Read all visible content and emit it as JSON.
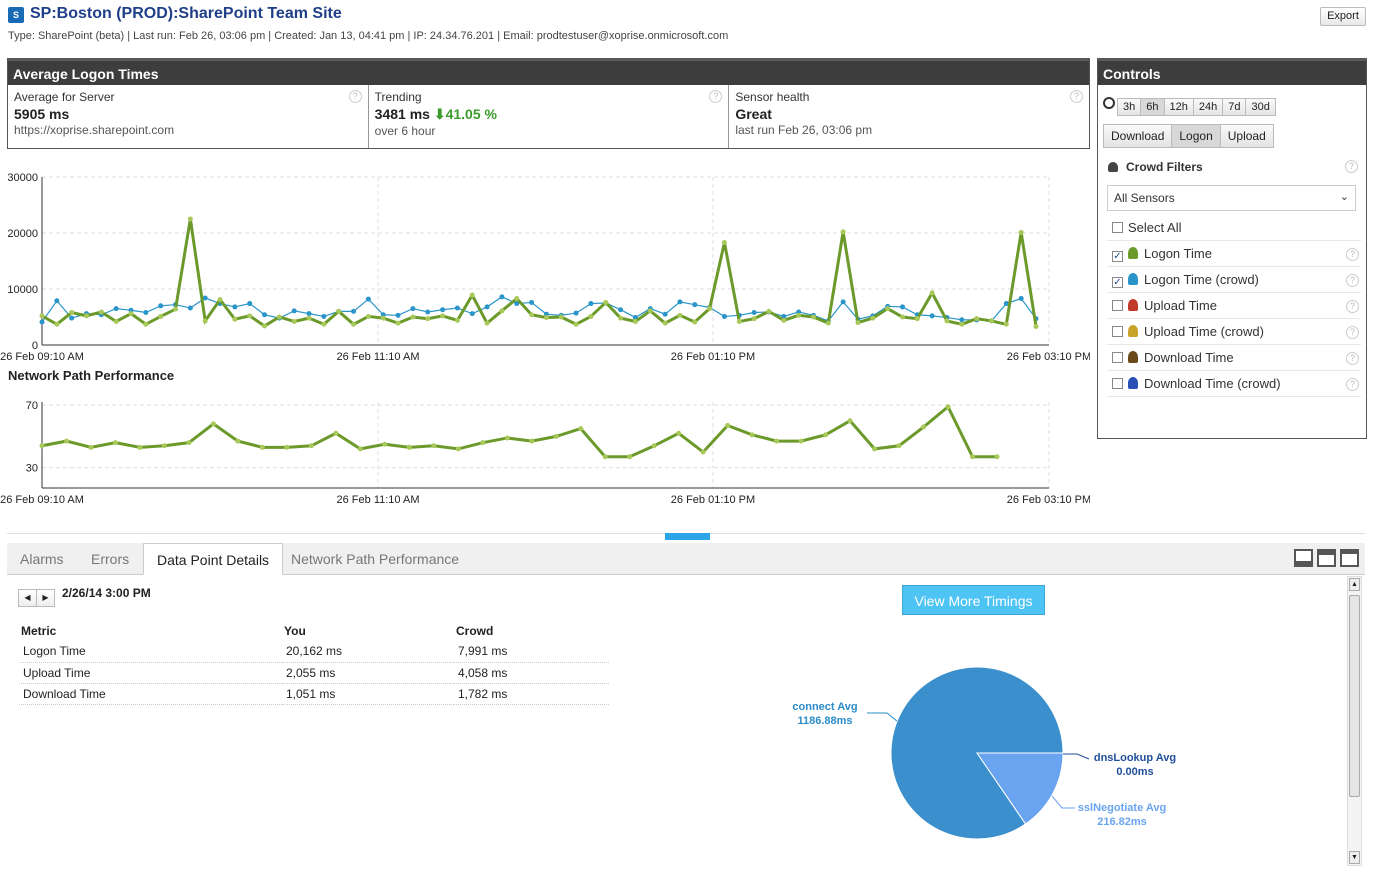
{
  "header": {
    "title": "SP:Boston (PROD):SharePoint Team Site",
    "meta": "Type: SharePoint (beta) | Last run: Feb 26, 03:06 pm | Created: Jan 13, 04:41 pm | IP: 24.34.76.201 | Email: prodtestuser@xoprise.onmicrosoft.com",
    "export_label": "Export",
    "logo_text": "S"
  },
  "avg_panel": {
    "title": "Average Logon Times",
    "stats": [
      {
        "label": "Average for Server",
        "value": "5905 ms",
        "sub": "https://xoprise.sharepoint.com"
      },
      {
        "label": "Trending",
        "value": "3481 ms",
        "trend": "41.05 %",
        "sub": "over 6 hour"
      },
      {
        "label": "Sensor health",
        "value": "Great",
        "sub": "last run Feb 26, 03:06 pm"
      }
    ]
  },
  "chart_data": [
    {
      "type": "line",
      "title": "",
      "x_tick_labels": [
        "26 Feb 09:10 AM",
        "26 Feb 11:10 AM",
        "26 Feb 01:10 PM",
        "26 Feb 03:10 PM"
      ],
      "y_tick_labels": [
        "0",
        "10000",
        "20000",
        "30000"
      ],
      "ylim": [
        0,
        30000
      ],
      "grid": true,
      "series": [
        {
          "color": "#6b9a2a",
          "values": [
            5200,
            3700,
            5800,
            5200,
            5900,
            4200,
            5600,
            3700,
            5100,
            6400,
            22500,
            4300,
            8100,
            4600,
            5200,
            3400,
            5000,
            4200,
            4800,
            3700,
            6000,
            3700,
            5100,
            4800,
            3900,
            5000,
            4700,
            5200,
            4400,
            8900,
            3900,
            6100,
            8300,
            5400,
            4900,
            5000,
            3700,
            5100,
            7600,
            4800,
            4200,
            6100,
            3900,
            5300,
            4100,
            6500,
            18300,
            4200,
            4700,
            6000,
            4400,
            5300,
            5000,
            3900,
            20200,
            4000,
            4800,
            6500,
            5000,
            4700,
            9300,
            4300,
            3700,
            4700,
            4300,
            3700,
            20100,
            3300
          ]
        },
        {
          "color": "#2a95c9",
          "values": [
            4100,
            7900,
            4800,
            5600,
            5400,
            6500,
            6200,
            5800,
            7000,
            7200,
            6600,
            8400,
            7400,
            6800,
            7400,
            5400,
            4800,
            6100,
            5600,
            5100,
            6000,
            6000,
            8200,
            5400,
            5300,
            6500,
            5900,
            6300,
            6600,
            5600,
            6800,
            8600,
            7400,
            7600,
            5500,
            5300,
            5700,
            7400,
            7500,
            6300,
            4900,
            6500,
            5500,
            7700,
            7200,
            6700,
            5100,
            5300,
            5800,
            5900,
            5100,
            5900,
            5300,
            4300,
            7700,
            4600,
            5200,
            6900,
            6800,
            5400,
            5200,
            4900,
            4500,
            4500,
            4300,
            7400,
            8300,
            4700
          ]
        }
      ]
    },
    {
      "type": "line",
      "title": "Network Path Performance",
      "x_tick_labels": [
        "26 Feb 09:10 AM",
        "26 Feb 11:10 AM",
        "26 Feb 01:10 PM",
        "26 Feb 03:10 PM"
      ],
      "y_tick_labels": [
        "30",
        "70"
      ],
      "grid": true,
      "series": [
        {
          "color": "#6b9a2a",
          "values": [
            44,
            47,
            43,
            46,
            43,
            44,
            46,
            58,
            47,
            43,
            43,
            44,
            52,
            42,
            45,
            43,
            44,
            42,
            46,
            49,
            47,
            50,
            55,
            37,
            37,
            44,
            52,
            40,
            57,
            51,
            47,
            47,
            51,
            60,
            42,
            44,
            56,
            69,
            37,
            37
          ]
        }
      ]
    },
    {
      "type": "pie",
      "slices": [
        {
          "label": "connect Avg",
          "value_label": "1186.88ms",
          "value": 1186.88,
          "color": "#3a8fcc"
        },
        {
          "label": "dnsLookup Avg",
          "value_label": "0.00ms",
          "value": 0.0,
          "color": "#2a5e99"
        },
        {
          "label": "sslNegotiate Avg",
          "value_label": "216.82ms",
          "value": 216.82,
          "color": "#6aa4f0"
        }
      ]
    }
  ],
  "controls": {
    "title": "Controls",
    "ranges": [
      "3h",
      "6h",
      "12h",
      "24h",
      "7d",
      "30d"
    ],
    "active_range": "6h",
    "metric_tabs": [
      "Download",
      "Logon",
      "Upload"
    ],
    "active_metric": "Logon",
    "crowd_title": "Crowd Filters",
    "sensor_select": "All Sensors",
    "select_all_label": "Select All",
    "filters": [
      {
        "label": "Logon Time",
        "checked": true,
        "icon_color": "#6b9a2a",
        "icon": "person-icon"
      },
      {
        "label": "Logon Time (crowd)",
        "checked": true,
        "icon_color": "#2a95c9",
        "icon": "crowd-icon"
      },
      {
        "label": "Upload Time",
        "checked": false,
        "icon_color": "#c0392b",
        "icon": "person-icon"
      },
      {
        "label": "Upload Time (crowd)",
        "checked": false,
        "icon_color": "#c9a22a",
        "icon": "crowd-icon"
      },
      {
        "label": "Download Time",
        "checked": false,
        "icon_color": "#6b4a1a",
        "icon": "person-icon"
      },
      {
        "label": "Download Time (crowd)",
        "checked": false,
        "icon_color": "#2a50b5",
        "icon": "crowd-icon"
      }
    ]
  },
  "tabs": [
    "Alarms",
    "Errors",
    "Data Point Details",
    "Network Path Performance"
  ],
  "active_tab": "Data Point Details",
  "details": {
    "date": "2/26/14 3:00 PM",
    "view_more_label": "View More Timings",
    "headers": [
      "Metric",
      "You",
      "Crowd"
    ],
    "rows": [
      [
        "Logon Time",
        "20,162 ms",
        "7,991 ms"
      ],
      [
        "Upload Time",
        "2,055 ms",
        "4,058 ms"
      ],
      [
        "Download Time",
        "1,051 ms",
        "1,782 ms"
      ]
    ]
  }
}
